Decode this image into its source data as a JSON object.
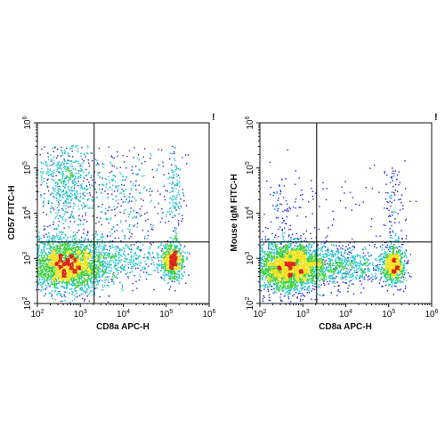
{
  "chart_data": [
    {
      "type": "scatter",
      "subtype": "flow-cytometry density dot plot",
      "xlabel": "CD8a APC-H",
      "ylabel": "CD57 FITC-H",
      "x_scale": "log",
      "y_scale": "log",
      "xlim": [
        100,
        1000000
      ],
      "ylim": [
        100,
        1000000
      ],
      "x_ticks": [
        "10^2",
        "10^3",
        "10^4",
        "10^5",
        "10^6"
      ],
      "y_ticks": [
        "10^2",
        "10^3",
        "10^4",
        "10^5",
        "10^6"
      ],
      "gate": {
        "x": 2100,
        "y": 2300
      },
      "corner_mark": "!",
      "populations": [
        {
          "center": [
            500,
            700
          ],
          "spread": [
            0.45,
            0.3
          ],
          "count": 2600
        },
        {
          "center": [
            140000,
            850
          ],
          "spread": [
            0.13,
            0.2
          ],
          "count": 700
        },
        {
          "center": [
            420,
            55000
          ],
          "spread": [
            0.35,
            0.55
          ],
          "count": 650
        },
        {
          "center": [
            8000,
            900
          ],
          "spread": [
            0.55,
            0.25
          ],
          "count": 450
        },
        {
          "center": [
            9000,
            25000
          ],
          "spread": [
            0.55,
            0.6
          ],
          "count": 350
        },
        {
          "center": [
            160000,
            20000
          ],
          "spread": [
            0.1,
            0.55
          ],
          "count": 150
        }
      ]
    },
    {
      "type": "scatter",
      "subtype": "flow-cytometry density dot plot",
      "xlabel": "CD8a APC-H",
      "ylabel": "Mouse IgM FITC-H",
      "x_scale": "log",
      "y_scale": "log",
      "xlim": [
        100,
        1000000
      ],
      "ylim": [
        100,
        1000000
      ],
      "x_ticks": [
        "10^2",
        "10^3",
        "10^4",
        "10^5",
        "10^6"
      ],
      "y_ticks": [
        "10^2",
        "10^3",
        "10^4",
        "10^5",
        "10^6"
      ],
      "gate": {
        "x": 2100,
        "y": 2300
      },
      "corner_mark": "!",
      "populations": [
        {
          "center": [
            480,
            650
          ],
          "spread": [
            0.42,
            0.28
          ],
          "count": 2800
        },
        {
          "center": [
            130000,
            700
          ],
          "spread": [
            0.14,
            0.22
          ],
          "count": 800
        },
        {
          "center": [
            9000,
            700
          ],
          "spread": [
            0.5,
            0.22
          ],
          "count": 650
        },
        {
          "center": [
            400,
            15000
          ],
          "spread": [
            0.3,
            0.45
          ],
          "count": 90
        },
        {
          "center": [
            130000,
            15000
          ],
          "spread": [
            0.12,
            0.5
          ],
          "count": 90
        },
        {
          "center": [
            15000,
            20000
          ],
          "spread": [
            0.6,
            0.6
          ],
          "count": 40
        }
      ]
    }
  ],
  "colors": {
    "density_low": "#1f1fd6",
    "density_mid": "#19c3c8",
    "density_midhigh": "#3ccf3c",
    "density_high": "#f2e21e",
    "density_peak": "#d9261c",
    "axis": "#111111",
    "gate_line": "#000000"
  }
}
